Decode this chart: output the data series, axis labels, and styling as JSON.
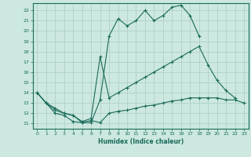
{
  "xlabel": "Humidex (Indice chaleur)",
  "background_color": "#cce8e0",
  "grid_color": "#aaccc4",
  "line_color": "#1a6b5a",
  "xlim": [
    -0.5,
    23.5
  ],
  "ylim": [
    10.5,
    22.7
  ],
  "xticks": [
    0,
    1,
    2,
    3,
    4,
    5,
    6,
    7,
    8,
    9,
    10,
    11,
    12,
    13,
    14,
    15,
    16,
    17,
    18,
    19,
    20,
    21,
    22,
    23
  ],
  "yticks": [
    11,
    12,
    13,
    14,
    15,
    16,
    17,
    18,
    19,
    20,
    21,
    22
  ],
  "lines": [
    {
      "x": [
        0,
        1,
        2,
        3,
        4,
        5,
        6,
        7,
        8,
        9,
        10,
        11,
        12,
        13,
        14,
        15,
        16,
        17,
        18
      ],
      "y": [
        14,
        13,
        12,
        11.8,
        11.2,
        11.1,
        11.1,
        13.3,
        19.5,
        21.2,
        20.5,
        21.0,
        22.0,
        21.0,
        21.5,
        22.3,
        22.5,
        21.5,
        19.5
      ]
    },
    {
      "x": [
        0,
        1,
        2,
        3,
        4,
        5,
        6,
        7,
        8,
        9,
        10,
        11,
        12,
        13,
        14,
        15,
        16,
        17,
        18,
        19,
        20,
        21,
        22
      ],
      "y": [
        14,
        13,
        12.5,
        12.0,
        11.8,
        11.2,
        11.5,
        17.5,
        13.5,
        14.0,
        14.5,
        15.0,
        15.5,
        16.0,
        16.5,
        17.0,
        17.5,
        18.0,
        18.5,
        16.7,
        15.2,
        14.2,
        13.5
      ]
    },
    {
      "x": [
        0,
        1,
        2,
        3,
        4,
        5,
        6,
        7,
        8,
        9,
        10,
        11,
        12,
        13,
        14,
        15,
        16,
        17,
        18,
        19,
        20,
        21,
        22,
        23
      ],
      "y": [
        14,
        13,
        12.3,
        12.0,
        11.8,
        11.1,
        11.3,
        11.1,
        12.0,
        12.2,
        12.3,
        12.5,
        12.7,
        12.8,
        13.0,
        13.2,
        13.3,
        13.5,
        13.5,
        13.5,
        13.5,
        13.3,
        13.3,
        13.0
      ]
    }
  ]
}
